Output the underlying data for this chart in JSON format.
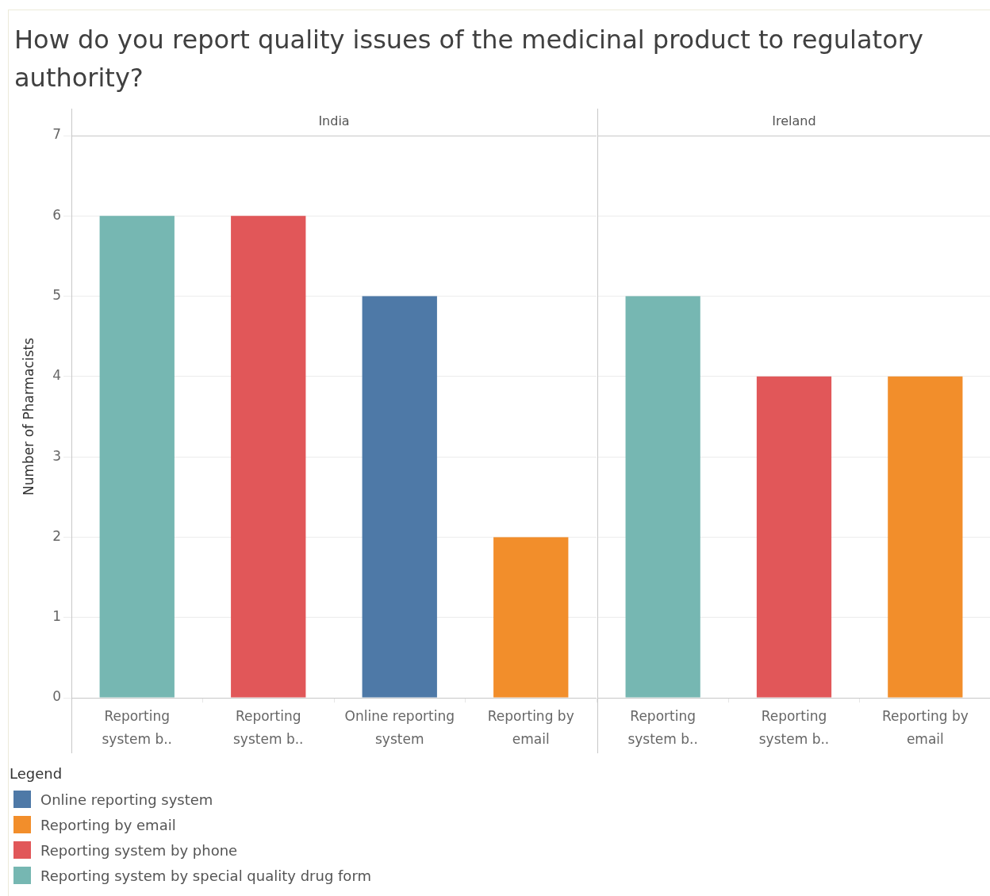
{
  "chart_data": [
    {
      "type": "bar",
      "title": "How do you report quality issues of the medicinal product to regulatory authority?",
      "subtitle": "India",
      "ylabel": "Number of Pharmacists",
      "categories": [
        "Reporting system b..",
        "Reporting system b..",
        "Online reporting system",
        "Reporting by email"
      ],
      "series": [
        {
          "name": "Online reporting system",
          "color": "#4e79a7",
          "values": [
            null,
            null,
            5,
            null
          ]
        },
        {
          "name": "Reporting by email",
          "color": "#f28e2b",
          "values": [
            null,
            null,
            null,
            2
          ]
        },
        {
          "name": "Reporting system by phone",
          "color": "#e15759",
          "values": [
            null,
            6,
            null,
            null
          ]
        },
        {
          "name": "Reporting system by special quality drug form",
          "color": "#76b7b2",
          "values": [
            6,
            null,
            null,
            null
          ]
        }
      ],
      "ylim": [
        0,
        7
      ],
      "yticks": [
        0,
        1,
        2,
        3,
        4,
        5,
        6,
        7
      ],
      "grid": "y",
      "legend": "bottom",
      "legend_title": "Legend"
    },
    {
      "type": "bar",
      "subtitle": "Ireland",
      "categories": [
        "Reporting system b..",
        "Reporting system b..",
        "Reporting by email"
      ],
      "series": [
        {
          "name": "Reporting by email",
          "color": "#f28e2b",
          "values": [
            null,
            null,
            4
          ]
        },
        {
          "name": "Reporting system by phone",
          "color": "#e15759",
          "values": [
            null,
            4,
            null
          ]
        },
        {
          "name": "Reporting system by special quality drug form",
          "color": "#76b7b2",
          "values": [
            5,
            null,
            null
          ]
        }
      ],
      "ylim": [
        0,
        7
      ],
      "yticks": [
        0,
        1,
        2,
        3,
        4,
        5,
        6,
        7
      ],
      "grid": "y",
      "tick_labels": "x"
    }
  ]
}
